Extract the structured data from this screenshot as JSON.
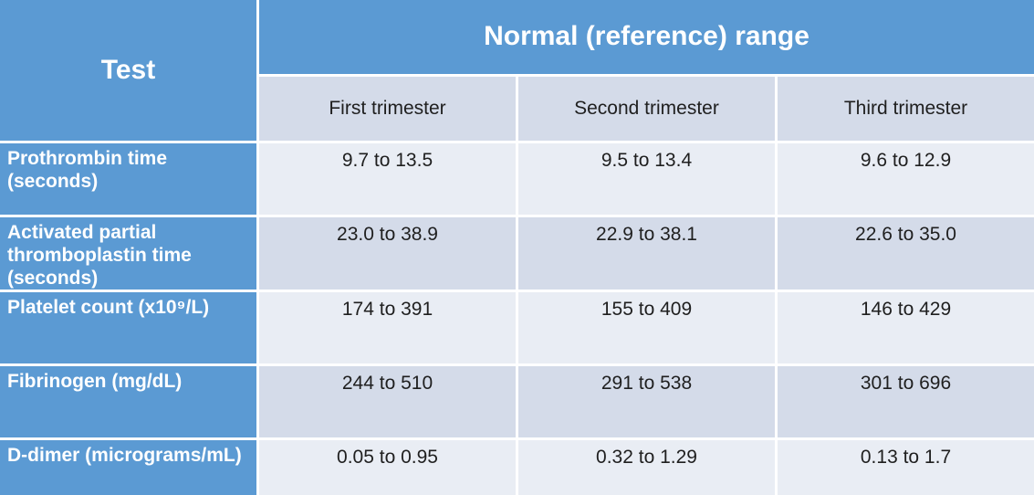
{
  "colors": {
    "header_blue": "#5b9ad3",
    "band_light": "#e9edf4",
    "band_dark": "#d4dbe9",
    "header_text": "#ffffff",
    "body_text": "#1f1f1f"
  },
  "table": {
    "corner_header": "Test",
    "group_header": "Normal (reference) range",
    "column_headers": [
      "First trimester",
      "Second trimester",
      "Third trimester"
    ],
    "rows": [
      {
        "label": "Prothrombin time (seconds)",
        "values": [
          "9.7 to 13.5",
          "9.5 to 13.4",
          "9.6 to 12.9"
        ]
      },
      {
        "label": "Activated partial thromboplastin time (seconds)",
        "values": [
          "23.0 to 38.9",
          "22.9 to 38.1",
          "22.6 to 35.0"
        ]
      },
      {
        "label": "Platelet count (x10⁹/L)",
        "values": [
          "174 to 391",
          "155 to 409",
          "146 to 429"
        ]
      },
      {
        "label": "Fibrinogen (mg/dL)",
        "values": [
          "244 to 510",
          "291 to 538",
          "301 to 696"
        ]
      },
      {
        "label": "D-dimer (micrograms/mL)",
        "values": [
          "0.05 to 0.95",
          "0.32 to 1.29",
          "0.13 to 1.7"
        ]
      }
    ]
  },
  "chart_data": {
    "type": "table",
    "title": "Normal (reference) range",
    "row_header": "Test",
    "columns": [
      "First trimester",
      "Second trimester",
      "Third trimester"
    ],
    "rows": [
      [
        "Prothrombin time (seconds)",
        "9.7 to 13.5",
        "9.5 to 13.4",
        "9.6 to 12.9"
      ],
      [
        "Activated partial thromboplastin time (seconds)",
        "23.0 to 38.9",
        "22.9 to 38.1",
        "22.6 to 35.0"
      ],
      [
        "Platelet count (x10⁹/L)",
        "174 to 391",
        "155 to 409",
        "146 to 429"
      ],
      [
        "Fibrinogen (mg/dL)",
        "244 to 510",
        "291 to 538",
        "301 to 696"
      ],
      [
        "D-dimer (micrograms/mL)",
        "0.05 to 0.95",
        "0.32 to 1.29",
        "0.13 to 1.7"
      ]
    ]
  }
}
